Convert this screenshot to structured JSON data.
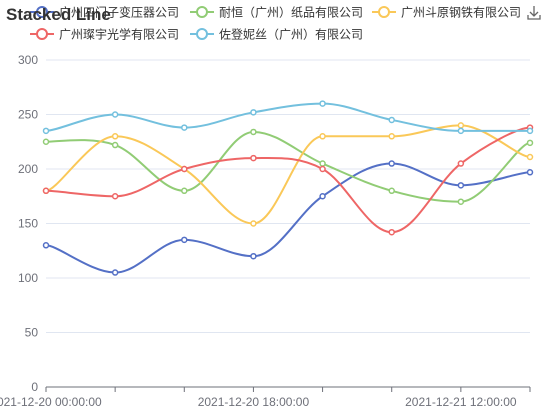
{
  "chart_data": {
    "type": "line",
    "title": "Stacked Line",
    "smooth": true,
    "xlabel": "",
    "ylabel": "",
    "x": [
      "2021-12-20 00:00:00",
      "2021-12-20 06:00:00",
      "2021-12-20 12:00:00",
      "2021-12-20 18:00:00",
      "2021-12-21 00:00:00",
      "2021-12-21 06:00:00",
      "2021-12-21 12:00:00",
      "2021-12-21 18:00:00"
    ],
    "x_ticks": [
      "2021-12-20 00:00:00",
      "2021-12-20 18:00:00",
      "2021-12-21 12:00:00"
    ],
    "ylim": [
      0,
      300
    ],
    "y_ticks": [
      "0",
      "50",
      "100",
      "150",
      "200",
      "250",
      "300"
    ],
    "grid": true,
    "legend_position": "top",
    "series": [
      {
        "name": "广州四门子变压器公司",
        "color": "#5470c6",
        "values": [
          130,
          105,
          135,
          120,
          175,
          205,
          185,
          197
        ]
      },
      {
        "name": "耐恒（广州）纸品有限公司",
        "color": "#91cc75",
        "values": [
          225,
          222,
          180,
          234,
          205,
          180,
          170,
          224
        ]
      },
      {
        "name": "广州斗原钢铁有限公司",
        "color": "#fac858",
        "values": [
          180,
          230,
          200,
          150,
          230,
          230,
          240,
          211
        ]
      },
      {
        "name": "广州璨宇光学有限公司",
        "color": "#ee6666",
        "values": [
          180,
          175,
          200,
          210,
          200,
          142,
          205,
          238
        ]
      },
      {
        "name": "佐登妮丝（广州）有限公司",
        "color": "#73c0de",
        "values": [
          235,
          250,
          238,
          252,
          260,
          245,
          235,
          235
        ]
      }
    ]
  },
  "toolbar": {
    "download_icon": "download-icon"
  }
}
